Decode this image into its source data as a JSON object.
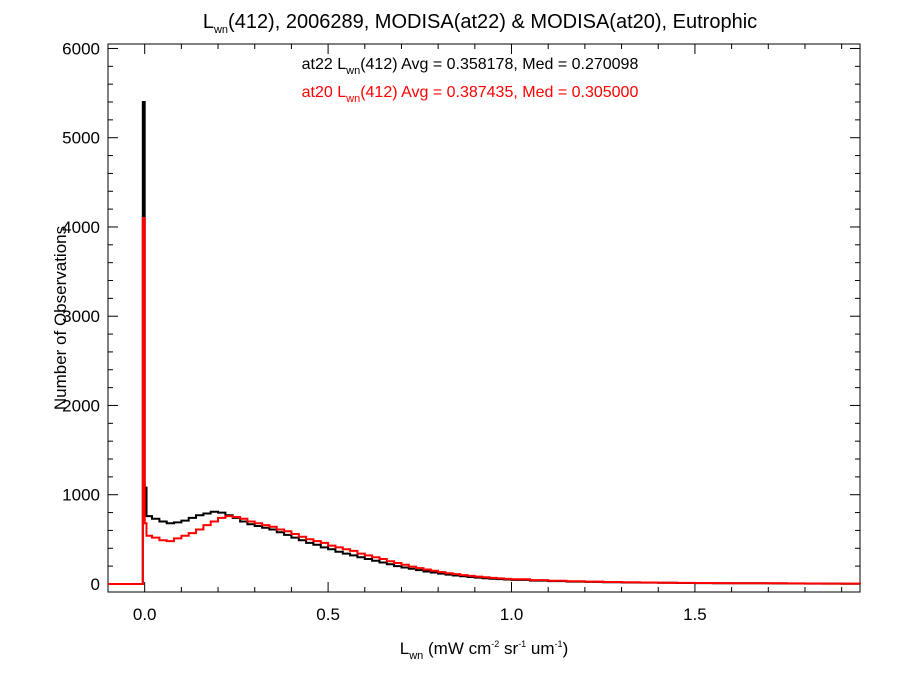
{
  "chart_data": {
    "type": "line",
    "title": {
      "prefix": "L",
      "sub": "wn",
      "rest": "(412), 2006289, MODISA(at22) & MODISA(at20), Eutrophic"
    },
    "xlabel": {
      "base": "L",
      "sub": "wn",
      "parts": [
        {
          "t": " (mW cm",
          "type": "normal"
        },
        {
          "t": "-2",
          "type": "sup"
        },
        {
          "t": " sr",
          "type": "normal"
        },
        {
          "t": "-1",
          "type": "sup"
        },
        {
          "t": " um",
          "type": "normal"
        },
        {
          "t": "-1",
          "type": "sup"
        },
        {
          "t": ")",
          "type": "normal"
        }
      ]
    },
    "ylabel": "Number of Observations",
    "xlim": [
      -0.1,
      1.95
    ],
    "ylim": [
      -90,
      6050
    ],
    "xticks": [
      0.0,
      0.5,
      1.0,
      1.5
    ],
    "xtick_labels": [
      "0.0",
      "0.5",
      "1.0",
      "1.5"
    ],
    "yticks": [
      0,
      1000,
      2000,
      3000,
      4000,
      5000,
      6000
    ],
    "ytick_labels": [
      "0",
      "1000",
      "2000",
      "3000",
      "4000",
      "5000",
      "6000"
    ],
    "annotations": [
      {
        "series": "at22",
        "color": "#000000",
        "lead": "at22 L",
        "sub": "wn",
        "tail": "(412) Avg = 0.358178, Med = 0.270098"
      },
      {
        "series": "at20",
        "color": "#ff0000",
        "lead": "at20 L",
        "sub": "wn",
        "tail": "(412) Avg = 0.387435, Med = 0.305000"
      }
    ],
    "series": [
      {
        "name": "at22",
        "color": "#000000",
        "points": [
          [
            -0.1,
            0
          ],
          [
            -0.005,
            0
          ],
          [
            -0.005,
            5400
          ],
          [
            0.0,
            5400
          ],
          [
            0.0,
            1080
          ],
          [
            0.005,
            1080
          ],
          [
            0.005,
            760
          ],
          [
            0.02,
            730
          ],
          [
            0.04,
            700
          ],
          [
            0.06,
            680
          ],
          [
            0.08,
            690
          ],
          [
            0.1,
            710
          ],
          [
            0.12,
            740
          ],
          [
            0.14,
            770
          ],
          [
            0.16,
            790
          ],
          [
            0.18,
            810
          ],
          [
            0.2,
            800
          ],
          [
            0.22,
            770
          ],
          [
            0.24,
            740
          ],
          [
            0.26,
            700
          ],
          [
            0.28,
            670
          ],
          [
            0.3,
            650
          ],
          [
            0.32,
            630
          ],
          [
            0.34,
            610
          ],
          [
            0.36,
            580
          ],
          [
            0.38,
            550
          ],
          [
            0.4,
            520
          ],
          [
            0.42,
            490
          ],
          [
            0.44,
            460
          ],
          [
            0.46,
            440
          ],
          [
            0.48,
            410
          ],
          [
            0.5,
            390
          ],
          [
            0.52,
            360
          ],
          [
            0.54,
            340
          ],
          [
            0.56,
            320
          ],
          [
            0.58,
            300
          ],
          [
            0.6,
            280
          ],
          [
            0.62,
            260
          ],
          [
            0.64,
            240
          ],
          [
            0.66,
            220
          ],
          [
            0.68,
            200
          ],
          [
            0.7,
            185
          ],
          [
            0.72,
            170
          ],
          [
            0.74,
            155
          ],
          [
            0.76,
            140
          ],
          [
            0.78,
            128
          ],
          [
            0.8,
            116
          ],
          [
            0.82,
            105
          ],
          [
            0.84,
            95
          ],
          [
            0.86,
            86
          ],
          [
            0.88,
            78
          ],
          [
            0.9,
            71
          ],
          [
            0.92,
            65
          ],
          [
            0.94,
            59
          ],
          [
            0.96,
            54
          ],
          [
            0.98,
            50
          ],
          [
            1.0,
            46
          ],
          [
            1.05,
            38
          ],
          [
            1.1,
            32
          ],
          [
            1.15,
            27
          ],
          [
            1.2,
            23
          ],
          [
            1.25,
            20
          ],
          [
            1.3,
            17
          ],
          [
            1.35,
            15
          ],
          [
            1.4,
            13
          ],
          [
            1.45,
            11
          ],
          [
            1.5,
            10
          ],
          [
            1.55,
            9
          ],
          [
            1.6,
            8
          ],
          [
            1.65,
            7
          ],
          [
            1.7,
            6
          ],
          [
            1.75,
            5
          ],
          [
            1.8,
            4
          ],
          [
            1.85,
            4
          ],
          [
            1.9,
            3
          ],
          [
            1.95,
            3
          ]
        ]
      },
      {
        "name": "at20",
        "color": "#ff0000",
        "points": [
          [
            -0.1,
            0
          ],
          [
            -0.005,
            0
          ],
          [
            -0.005,
            4100
          ],
          [
            0.0,
            4100
          ],
          [
            0.0,
            680
          ],
          [
            0.005,
            680
          ],
          [
            0.005,
            540
          ],
          [
            0.02,
            520
          ],
          [
            0.04,
            490
          ],
          [
            0.06,
            480
          ],
          [
            0.08,
            510
          ],
          [
            0.1,
            540
          ],
          [
            0.12,
            570
          ],
          [
            0.14,
            610
          ],
          [
            0.16,
            660
          ],
          [
            0.18,
            700
          ],
          [
            0.2,
            740
          ],
          [
            0.22,
            760
          ],
          [
            0.24,
            750
          ],
          [
            0.26,
            730
          ],
          [
            0.28,
            700
          ],
          [
            0.3,
            680
          ],
          [
            0.32,
            660
          ],
          [
            0.34,
            640
          ],
          [
            0.36,
            610
          ],
          [
            0.38,
            590
          ],
          [
            0.4,
            560
          ],
          [
            0.42,
            530
          ],
          [
            0.44,
            500
          ],
          [
            0.46,
            480
          ],
          [
            0.48,
            460
          ],
          [
            0.5,
            430
          ],
          [
            0.52,
            410
          ],
          [
            0.54,
            390
          ],
          [
            0.56,
            370
          ],
          [
            0.58,
            340
          ],
          [
            0.6,
            320
          ],
          [
            0.62,
            300
          ],
          [
            0.64,
            280
          ],
          [
            0.66,
            255
          ],
          [
            0.68,
            235
          ],
          [
            0.7,
            215
          ],
          [
            0.72,
            195
          ],
          [
            0.74,
            178
          ],
          [
            0.76,
            162
          ],
          [
            0.78,
            147
          ],
          [
            0.8,
            133
          ],
          [
            0.82,
            121
          ],
          [
            0.84,
            110
          ],
          [
            0.86,
            99
          ],
          [
            0.88,
            90
          ],
          [
            0.9,
            82
          ],
          [
            0.92,
            75
          ],
          [
            0.94,
            68
          ],
          [
            0.96,
            62
          ],
          [
            0.98,
            57
          ],
          [
            1.0,
            52
          ],
          [
            1.05,
            43
          ],
          [
            1.1,
            36
          ],
          [
            1.15,
            30
          ],
          [
            1.2,
            26
          ],
          [
            1.25,
            22
          ],
          [
            1.3,
            19
          ],
          [
            1.35,
            16
          ],
          [
            1.4,
            14
          ],
          [
            1.45,
            12
          ],
          [
            1.5,
            11
          ],
          [
            1.55,
            10
          ],
          [
            1.6,
            9
          ],
          [
            1.65,
            8
          ],
          [
            1.7,
            7
          ],
          [
            1.75,
            6
          ],
          [
            1.8,
            5
          ],
          [
            1.85,
            4
          ],
          [
            1.9,
            4
          ],
          [
            1.95,
            3
          ]
        ]
      }
    ],
    "grid": false,
    "legend": "none"
  }
}
